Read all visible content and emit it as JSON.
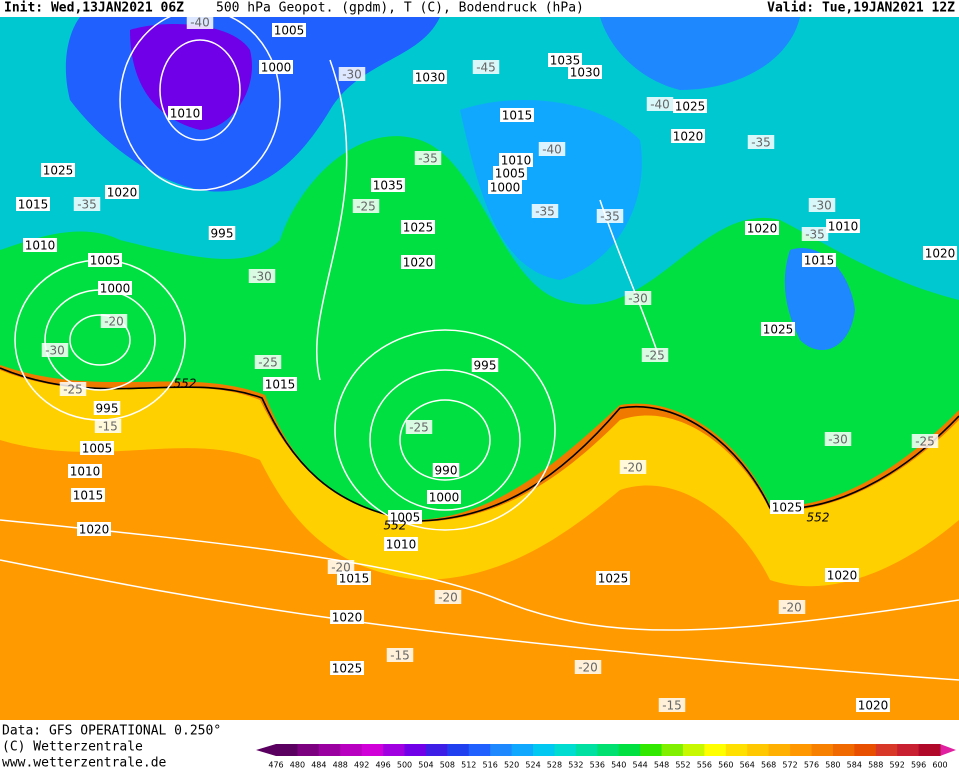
{
  "header": {
    "init": "Init: Wed,13JAN2021 06Z",
    "title": "500 hPa Geopot. (gpdm), T (C), Bodendruck (hPa)",
    "valid": "Valid: Tue,19JAN2021 12Z"
  },
  "map": {
    "isobar_labels": [
      1005,
      1000,
      1010,
      1030,
      1035,
      1030,
      1015,
      1025,
      1020,
      1025,
      1020,
      1015,
      1035,
      1010,
      1005,
      1000,
      995,
      1025,
      1020,
      1020,
      1010,
      1015,
      1020,
      1010,
      1005,
      1000,
      995,
      1025,
      1015,
      995,
      1005,
      1010,
      1015,
      990,
      1000,
      1005,
      1010,
      1020,
      1025,
      1015,
      1025,
      1020,
      1020,
      1025,
      1020
    ],
    "temperature_labels": [
      -40,
      -30,
      -45,
      -40,
      -35,
      -35,
      -40,
      -35,
      -25,
      -35,
      -35,
      -30,
      -35,
      -30,
      -30,
      -20,
      -30,
      -25,
      -25,
      -25,
      -15,
      -25,
      -30,
      -25,
      -20,
      -20,
      -20,
      -20,
      -15,
      -20,
      -15
    ],
    "height_labels": [
      552,
      552,
      552
    ]
  },
  "footer": {
    "data": "Data: GFS OPERATIONAL 0.250°",
    "copyright": "(C) Wetterzentrale",
    "url": "www.wetterzentrale.de"
  },
  "colorbar": {
    "labels": [
      476,
      480,
      484,
      488,
      492,
      496,
      500,
      504,
      508,
      512,
      516,
      520,
      524,
      528,
      532,
      536,
      540,
      544,
      548,
      552,
      556,
      560,
      564,
      568,
      572,
      576,
      580,
      584,
      588,
      592,
      596,
      600
    ],
    "colors": [
      "#5a0060",
      "#7a0080",
      "#9a00a0",
      "#b800c0",
      "#d000d8",
      "#a000e0",
      "#7000e8",
      "#3c1ee6",
      "#2040f0",
      "#2060ff",
      "#1e88ff",
      "#10a8ff",
      "#00c8f0",
      "#00dcd0",
      "#00e0a0",
      "#00e070",
      "#00e040",
      "#30e800",
      "#80f000",
      "#c8f800",
      "#ffff00",
      "#ffe000",
      "#ffc800",
      "#ffb000",
      "#ff9800",
      "#f88000",
      "#f06800",
      "#e85000",
      "#d83828",
      "#c82030",
      "#b00828"
    ]
  }
}
